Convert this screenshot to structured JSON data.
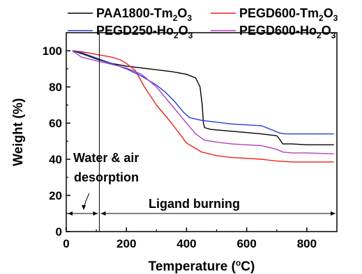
{
  "chart_data": {
    "type": "line",
    "xlabel": "Temperature (°C)",
    "ylabel": "Weight (%)",
    "xlim": [
      0,
      900
    ],
    "ylim": [
      0,
      110
    ],
    "xticks": [
      0,
      200,
      400,
      600,
      800
    ],
    "yticks": [
      0,
      20,
      40,
      60,
      80,
      100
    ],
    "grid": false,
    "legend_position": "top",
    "series": [
      {
        "name": "PAA1800-Tm2O3",
        "legend": {
          "pre": "PAA1800-Tm",
          "sub1": "2",
          "mid": "O",
          "sub2": "3"
        },
        "color": "#000000",
        "x": [
          20,
          50,
          100,
          150,
          200,
          250,
          300,
          350,
          400,
          430,
          445,
          452,
          456,
          460,
          480,
          550,
          650,
          700,
          710,
          720,
          750,
          800,
          890
        ],
        "y": [
          100,
          98.5,
          95.5,
          93,
          91.5,
          90.5,
          89.5,
          88.5,
          87,
          85,
          80,
          70,
          60,
          57.5,
          56.5,
          55.5,
          54,
          53,
          51,
          48.5,
          48.5,
          48,
          48
        ]
      },
      {
        "name": "PEGD600-Tm2O3",
        "legend": {
          "pre": "PEGD600-Tm",
          "sub1": "2",
          "mid": "O",
          "sub2": "3"
        },
        "color": "#e8221c",
        "x": [
          20,
          50,
          100,
          150,
          180,
          200,
          230,
          260,
          300,
          350,
          400,
          450,
          500,
          550,
          600,
          650,
          700,
          750,
          800,
          890
        ],
        "y": [
          100,
          99.5,
          98,
          96.5,
          95,
          93,
          89,
          80,
          70,
          60,
          49,
          44,
          42,
          41,
          40.5,
          40,
          39,
          38.5,
          38.5,
          38.5
        ]
      },
      {
        "name": "PEGD250-Ho2O3",
        "legend": {
          "pre": "PEGD250-Ho",
          "sub1": "2",
          "mid": "O",
          "sub2": "3"
        },
        "color": "#1f3fd6",
        "x": [
          20,
          50,
          100,
          150,
          200,
          250,
          300,
          330,
          360,
          390,
          410,
          450,
          500,
          550,
          600,
          650,
          680,
          710,
          730,
          800,
          890
        ],
        "y": [
          100,
          99,
          96,
          93,
          90,
          86,
          81,
          77,
          72,
          66,
          63,
          61.5,
          60.5,
          59.5,
          59,
          58.5,
          56.5,
          54.5,
          54,
          54,
          54
        ]
      },
      {
        "name": "PEGD600-Ho2O3",
        "legend": {
          "pre": "PEGD600-Ho",
          "sub1": "2",
          "mid": "O",
          "sub2": "3"
        },
        "color": "#b040c0",
        "x": [
          20,
          50,
          100,
          150,
          200,
          250,
          300,
          350,
          400,
          430,
          460,
          500,
          550,
          600,
          650,
          700,
          720,
          750,
          800,
          890
        ],
        "y": [
          100,
          96.5,
          94.5,
          92.5,
          90.5,
          87,
          80,
          70,
          60,
          54,
          50.5,
          49.5,
          48.5,
          48,
          47.5,
          45.5,
          44,
          43.5,
          43.5,
          43
        ]
      }
    ],
    "annotations": {
      "water_air_line1": "Water & air",
      "water_air_line2": "desorption",
      "ligand": "Ligand burning",
      "split_x": 110,
      "arrow_y": 10
    }
  }
}
